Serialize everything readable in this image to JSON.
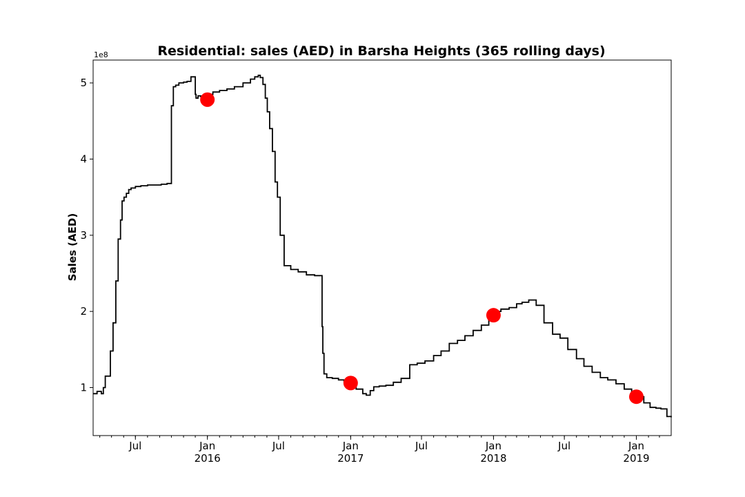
{
  "chart_data": {
    "type": "line",
    "title": "Residential: sales (AED) in Barsha Heights (365 rolling days)",
    "xlabel": "",
    "ylabel": "Sales (AED)",
    "y_scale_label": "1e8",
    "y_unit_multiplier": 100000000,
    "ylim": [
      0.37,
      5.3
    ],
    "xlim": [
      "2015-03-15",
      "2019-03-31"
    ],
    "y_ticks": [
      1,
      2,
      3,
      4,
      5
    ],
    "x_ticks": [
      {
        "date": "2015-07-01",
        "label": "Jul",
        "year": ""
      },
      {
        "date": "2016-01-01",
        "label": "Jan",
        "year": "2016"
      },
      {
        "date": "2016-07-01",
        "label": "Jul",
        "year": ""
      },
      {
        "date": "2017-01-01",
        "label": "Jan",
        "year": "2017"
      },
      {
        "date": "2017-07-01",
        "label": "Jul",
        "year": ""
      },
      {
        "date": "2018-01-01",
        "label": "Jan",
        "year": "2018"
      },
      {
        "date": "2018-07-01",
        "label": "Jul",
        "year": ""
      },
      {
        "date": "2019-01-01",
        "label": "Jan",
        "year": "2019"
      }
    ],
    "grid": false,
    "series": [
      {
        "color": "#000000",
        "x": [
          "2015-03-15",
          "2015-03-25",
          "2015-04-05",
          "2015-04-10",
          "2015-04-15",
          "2015-04-28",
          "2015-05-05",
          "2015-05-12",
          "2015-05-18",
          "2015-05-24",
          "2015-05-28",
          "2015-06-02",
          "2015-06-08",
          "2015-06-14",
          "2015-06-20",
          "2015-07-01",
          "2015-07-15",
          "2015-08-01",
          "2015-08-20",
          "2015-09-05",
          "2015-09-20",
          "2015-10-01",
          "2015-10-06",
          "2015-10-12",
          "2015-10-20",
          "2015-11-01",
          "2015-11-10",
          "2015-11-20",
          "2015-12-01",
          "2015-12-03",
          "2015-12-08",
          "2015-12-15",
          "2016-01-01",
          "2016-01-15",
          "2016-02-01",
          "2016-02-20",
          "2016-03-10",
          "2016-04-01",
          "2016-04-20",
          "2016-05-01",
          "2016-05-10",
          "2016-05-15",
          "2016-05-22",
          "2016-05-28",
          "2016-06-02",
          "2016-06-08",
          "2016-06-15",
          "2016-06-22",
          "2016-06-28",
          "2016-07-05",
          "2016-07-15",
          "2016-08-01",
          "2016-08-20",
          "2016-09-10",
          "2016-10-01",
          "2016-10-15",
          "2016-10-20",
          "2016-10-22",
          "2016-10-25",
          "2016-11-01",
          "2016-11-15",
          "2016-12-01",
          "2016-12-15",
          "2017-01-01",
          "2017-01-15",
          "2017-02-01",
          "2017-02-10",
          "2017-02-20",
          "2017-03-01",
          "2017-03-15",
          "2017-04-01",
          "2017-04-20",
          "2017-05-10",
          "2017-06-01",
          "2017-06-20",
          "2017-07-10",
          "2017-08-01",
          "2017-08-20",
          "2017-09-10",
          "2017-10-01",
          "2017-10-20",
          "2017-11-10",
          "2017-12-01",
          "2017-12-20",
          "2018-01-01",
          "2018-01-20",
          "2018-02-10",
          "2018-03-01",
          "2018-03-15",
          "2018-04-01",
          "2018-04-20",
          "2018-05-10",
          "2018-06-01",
          "2018-06-20",
          "2018-07-10",
          "2018-08-01",
          "2018-08-20",
          "2018-09-10",
          "2018-10-01",
          "2018-10-20",
          "2018-11-10",
          "2018-12-01",
          "2018-12-20",
          "2019-01-01",
          "2019-01-20",
          "2019-02-05",
          "2019-02-20",
          "2019-03-05",
          "2019-03-20",
          "2019-03-31"
        ],
        "y": [
          0.92,
          0.95,
          0.92,
          1.0,
          1.15,
          1.48,
          1.85,
          2.4,
          2.95,
          3.2,
          3.45,
          3.5,
          3.55,
          3.6,
          3.62,
          3.64,
          3.65,
          3.66,
          3.66,
          3.67,
          3.68,
          4.7,
          4.95,
          4.97,
          5.0,
          5.01,
          5.02,
          5.08,
          4.85,
          4.8,
          4.83,
          4.82,
          4.85,
          4.88,
          4.9,
          4.92,
          4.95,
          5.0,
          5.05,
          5.08,
          5.1,
          5.07,
          4.98,
          4.8,
          4.62,
          4.4,
          4.1,
          3.7,
          3.5,
          3.0,
          2.6,
          2.55,
          2.52,
          2.48,
          2.47,
          2.47,
          1.8,
          1.45,
          1.18,
          1.13,
          1.12,
          1.1,
          1.08,
          1.02,
          0.98,
          0.92,
          0.9,
          0.96,
          1.01,
          1.02,
          1.03,
          1.07,
          1.12,
          1.3,
          1.32,
          1.35,
          1.42,
          1.48,
          1.58,
          1.62,
          1.68,
          1.75,
          1.82,
          1.9,
          2.0,
          2.03,
          2.05,
          2.1,
          2.12,
          2.15,
          2.08,
          1.85,
          1.7,
          1.65,
          1.5,
          1.38,
          1.28,
          1.2,
          1.13,
          1.1,
          1.05,
          0.98,
          0.9,
          0.88,
          0.8,
          0.74,
          0.73,
          0.72,
          0.62,
          0.61
        ]
      }
    ],
    "markers": {
      "color": "#ff0000",
      "x": [
        "2016-01-01",
        "2017-01-01",
        "2018-01-01",
        "2019-01-01"
      ],
      "y": [
        4.78,
        1.06,
        1.95,
        0.88
      ]
    }
  }
}
